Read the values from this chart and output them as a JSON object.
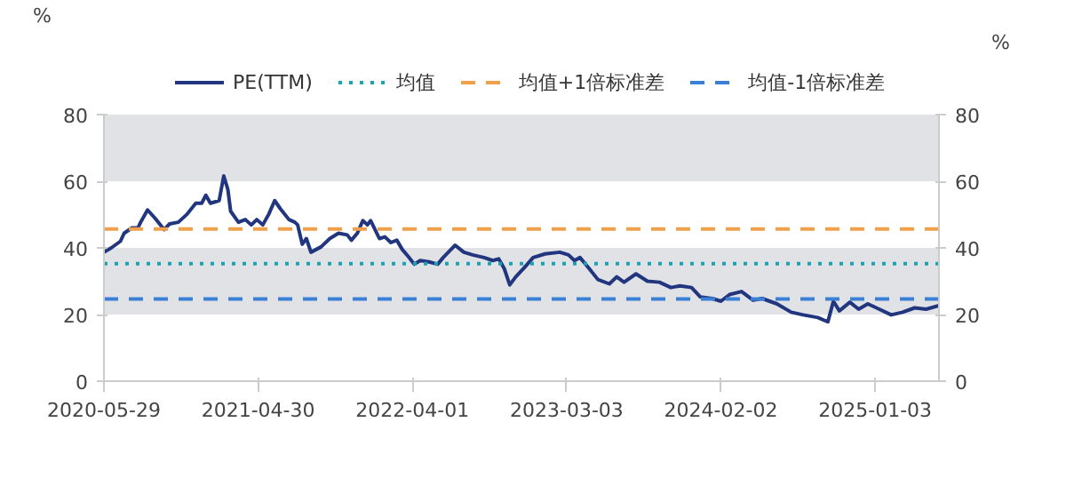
{
  "chart_data": {
    "type": "line",
    "ylabel": "%",
    "y2label": "%",
    "x": [
      "2020-05-29",
      "2020-06-14",
      "2020-07-04",
      "2020-07-12",
      "2020-07-29",
      "2020-08-11",
      "2020-08-17",
      "2020-09-01",
      "2020-09-18",
      "2020-10-07",
      "2020-10-19",
      "2020-11-07",
      "2020-11-26",
      "2020-12-15",
      "2020-12-28",
      "2021-01-06",
      "2021-01-16",
      "2021-02-04",
      "2021-02-14",
      "2021-02-23",
      "2021-03-01",
      "2021-03-18",
      "2021-04-02",
      "2021-04-15",
      "2021-04-27",
      "2021-05-10",
      "2021-05-23",
      "2021-06-05",
      "2021-06-17",
      "2021-07-06",
      "2021-07-19",
      "2021-07-25",
      "2021-08-04",
      "2021-08-13",
      "2021-08-23",
      "2021-09-14",
      "2021-10-03",
      "2021-10-22",
      "2021-11-10",
      "2021-11-19",
      "2021-12-02",
      "2021-12-14",
      "2021-12-24",
      "2021-12-31",
      "2022-01-19",
      "2022-01-31",
      "2022-02-13",
      "2022-02-26",
      "2022-03-10",
      "2022-03-23",
      "2022-04-05",
      "2022-04-18",
      "2022-05-07",
      "2022-05-26",
      "2022-06-07",
      "2022-07-03",
      "2022-07-22",
      "2022-08-10",
      "2022-09-04",
      "2022-09-23",
      "2022-10-06",
      "2022-10-18",
      "2022-10-30",
      "2022-11-12",
      "2022-12-01",
      "2022-12-20",
      "2023-01-15",
      "2023-02-16",
      "2023-03-07",
      "2023-03-20",
      "2023-04-01",
      "2023-04-21",
      "2023-05-10",
      "2023-06-04",
      "2023-06-20",
      "2023-07-06",
      "2023-08-01",
      "2023-08-26",
      "2023-09-21",
      "2023-10-16",
      "2023-11-05",
      "2023-11-30",
      "2023-12-19",
      "2024-01-14",
      "2024-02-02",
      "2024-02-21",
      "2024-03-18",
      "2024-04-12",
      "2024-05-02",
      "2024-06-03",
      "2024-07-04",
      "2024-07-30",
      "2024-08-31",
      "2024-09-22",
      "2024-10-04",
      "2024-10-17",
      "2024-11-09",
      "2024-11-28",
      "2024-12-18",
      "2025-01-12",
      "2025-02-07",
      "2025-03-04",
      "2025-03-30",
      "2025-04-24",
      "2025-05-22"
    ],
    "series": [
      {
        "name": "PE(TTM)",
        "color": "#22367f",
        "values": [
          38.7,
          40,
          42,
          44.4,
          46,
          46,
          47.7,
          51.4,
          48.8,
          45.5,
          47.2,
          47.7,
          50.1,
          53.4,
          53.4,
          55.8,
          53.4,
          54.2,
          61.6,
          57.5,
          51,
          47.7,
          48.5,
          46.9,
          48.5,
          46.9,
          50.1,
          54.2,
          51.8,
          48.5,
          47.7,
          46.9,
          41.1,
          42.8,
          38.7,
          40.3,
          42.8,
          44.4,
          43.9,
          42.3,
          44.4,
          48.2,
          46.9,
          48.2,
          42.8,
          43.3,
          41.6,
          42.3,
          39.5,
          37.4,
          35.1,
          36.2,
          35.8,
          35.1,
          37.1,
          40.8,
          38.7,
          37.9,
          37.1,
          36.2,
          36.7,
          33.8,
          28.9,
          31.3,
          34.1,
          37.1,
          38.2,
          38.7,
          37.9,
          36.2,
          37.1,
          33.8,
          30.5,
          29.2,
          31.3,
          29.7,
          32.2,
          30,
          29.7,
          28.1,
          28.6,
          28.1,
          25.3,
          24.8,
          24,
          26,
          26.9,
          24.3,
          24.8,
          23.2,
          20.7,
          19.9,
          19.1,
          17.8,
          24,
          21.1,
          23.7,
          21.6,
          23.2,
          21.6,
          19.9,
          20.7,
          22,
          21.6,
          22.7
        ]
      }
    ],
    "ref_lines": [
      {
        "axis": "y",
        "value": 35.3,
        "label": "均值",
        "color": "#1aa3b3",
        "line_style": "dotted"
      },
      {
        "axis": "y",
        "value": 45.7,
        "label": "均值+1倍标准差",
        "color": "#f0a04b",
        "line_style": "dashed"
      },
      {
        "axis": "y",
        "value": 24.7,
        "label": "均值-1倍标准差",
        "color": "#3a80d6",
        "line_style": "dashed"
      }
    ],
    "bands": [
      {
        "axis": "y",
        "from": 60,
        "to": 80,
        "color": "#e1e2e6"
      },
      {
        "axis": "y",
        "from": 20,
        "to": 40,
        "color": "#e1e2e6"
      }
    ],
    "xlim": [
      "2020-05-29",
      "2025-05-22"
    ],
    "xticks": [
      "2020-05-29",
      "2021-04-30",
      "2022-04-01",
      "2023-03-03",
      "2024-02-02",
      "2025-01-03"
    ],
    "ylim": [
      0,
      80
    ],
    "yticks": [
      0,
      20,
      40,
      60,
      80
    ],
    "y2lim": [
      0,
      80
    ],
    "y2ticks": [
      0,
      20,
      40,
      60,
      80
    ],
    "grid": false,
    "legend": "top",
    "marker": "none",
    "line_style": "solid"
  }
}
